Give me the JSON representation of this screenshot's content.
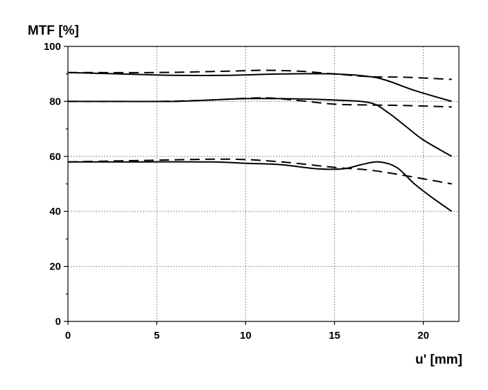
{
  "chart_data": {
    "type": "line",
    "title": "",
    "xlabel": "u' [mm]",
    "ylabel": "MTF [%]",
    "xlim": [
      0,
      22
    ],
    "ylim": [
      0,
      100
    ],
    "x_ticks": [
      0,
      5,
      10,
      15,
      20
    ],
    "y_ticks": [
      0,
      20,
      40,
      60,
      80,
      100
    ],
    "grid": true,
    "legend": "none",
    "series": [
      {
        "style": "solid",
        "x": [
          0,
          3,
          6,
          9,
          12,
          15,
          17,
          18,
          19.5,
          21.6
        ],
        "y": [
          90.5,
          90,
          89.5,
          89.5,
          90,
          90,
          89,
          87.5,
          84,
          80
        ]
      },
      {
        "style": "dashed",
        "x": [
          0,
          5,
          9,
          11,
          13,
          15,
          17,
          19,
          21.6
        ],
        "y": [
          90.5,
          90.5,
          91,
          91.3,
          91,
          90,
          89,
          88.8,
          88
        ]
      },
      {
        "style": "solid",
        "x": [
          0,
          3,
          6,
          8,
          10,
          12,
          15,
          17,
          18,
          19,
          20,
          21.6
        ],
        "y": [
          80,
          80,
          80,
          80.5,
          81,
          81,
          80.5,
          79.5,
          76,
          71,
          66,
          60
        ]
      },
      {
        "style": "dashed",
        "x": [
          0,
          5,
          8,
          11,
          13,
          15,
          17,
          19,
          21.6
        ],
        "y": [
          80,
          80,
          80.5,
          81.3,
          80.3,
          79,
          78.7,
          78.5,
          78
        ]
      },
      {
        "style": "solid",
        "x": [
          0,
          4,
          8,
          10,
          12,
          14,
          15.5,
          16.5,
          17.5,
          18.5,
          19.5,
          20.5,
          21.6
        ],
        "y": [
          58,
          58,
          58,
          57.5,
          57,
          55.5,
          55.5,
          57,
          58,
          56,
          50,
          45,
          40
        ]
      },
      {
        "style": "dashed",
        "x": [
          0,
          4,
          9,
          12,
          15,
          17,
          19,
          21.6
        ],
        "y": [
          58,
          58.5,
          59,
          58,
          56,
          55,
          53,
          50
        ]
      }
    ]
  }
}
